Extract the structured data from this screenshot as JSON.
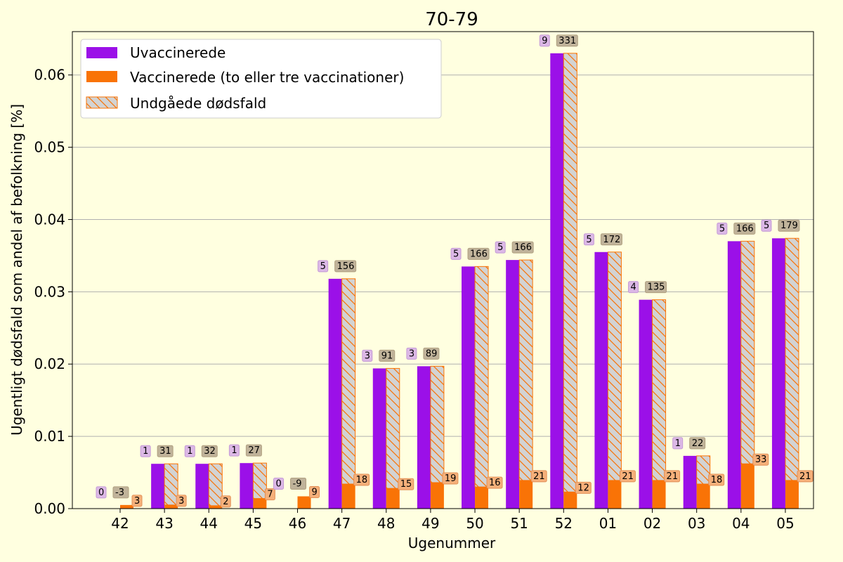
{
  "chart_data": {
    "type": "bar",
    "title": "70-79",
    "xlabel": "Ugenummer",
    "ylabel": "Ugentligt dødsfald som andel af befolkning [%]",
    "ylim": [
      0,
      0.066
    ],
    "yticks": [
      "0.00",
      "0.01",
      "0.02",
      "0.03",
      "0.04",
      "0.05",
      "0.06"
    ],
    "ytick_values": [
      0,
      0.01,
      0.02,
      0.03,
      0.04,
      0.05,
      0.06
    ],
    "grid": "horizontal",
    "legend_position": "top-left",
    "categories": [
      "42",
      "43",
      "44",
      "45",
      "46",
      "47",
      "48",
      "49",
      "50",
      "51",
      "52",
      "01",
      "02",
      "03",
      "04",
      "05"
    ],
    "series": [
      {
        "name": "Uvaccinerede",
        "color": "#9b10e8",
        "values": [
          0,
          0.0062,
          0.0062,
          0.0063,
          0,
          0.0318,
          0.0194,
          0.0197,
          0.0335,
          0.0344,
          0.063,
          0.0355,
          0.0289,
          0.0073,
          0.037,
          0.0374
        ],
        "labels": [
          "0",
          "1",
          "1",
          "1",
          "0",
          "5",
          "3",
          "3",
          "5",
          "5",
          "9",
          "5",
          "4",
          "1",
          "5",
          "5"
        ]
      },
      {
        "name": "Vaccinerede (to eller tre vaccinationer)",
        "color": "#f97306",
        "values": [
          0.0005,
          0.0005,
          0.0004,
          0.0014,
          0.0017,
          0.0034,
          0.0028,
          0.0036,
          0.003,
          0.0039,
          0.0023,
          0.0039,
          0.0039,
          0.0034,
          0.0062,
          0.0039
        ],
        "labels": [
          "3",
          "3",
          "2",
          "7",
          "9",
          "18",
          "15",
          "19",
          "16",
          "21",
          "12",
          "21",
          "21",
          "18",
          "33",
          "21"
        ]
      },
      {
        "name": "Undgåede dødsfald",
        "color": "#d3d3d3",
        "values": [
          0,
          0.0057,
          0.0058,
          0.0049,
          0,
          0.0284,
          0.0166,
          0.0161,
          0.0305,
          0.0305,
          0.0607,
          0.0316,
          0.025,
          0.0039,
          0.0308,
          0.0335
        ],
        "labels": [
          "-3",
          "31",
          "32",
          "27",
          "-9",
          "156",
          "91",
          "89",
          "166",
          "166",
          "331",
          "172",
          "135",
          "22",
          "166",
          "179"
        ]
      }
    ]
  }
}
